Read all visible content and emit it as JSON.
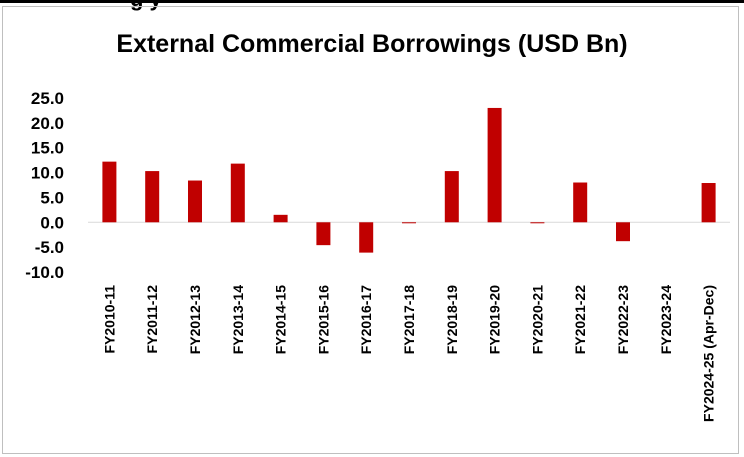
{
  "header_fragment": "g                           y",
  "chart_data": {
    "type": "bar",
    "title": "External Commercial Borrowings (USD Bn)",
    "xlabel": "",
    "ylabel": "",
    "categories": [
      "FY2010-11",
      "FY2011-12",
      "FY2012-13",
      "FY2013-14",
      "FY2014-15",
      "FY2015-16",
      "FY2016-17",
      "FY2017-18",
      "FY2018-19",
      "FY2019-20",
      "FY2020-21",
      "FY2021-22",
      "FY2022-23",
      "FY2023-24",
      "FY2024-25 (Apr-Dec)"
    ],
    "values": [
      12.2,
      10.3,
      8.4,
      11.8,
      1.5,
      -4.6,
      -6.1,
      -0.2,
      10.3,
      23.0,
      -0.2,
      8.0,
      -3.8,
      0.0,
      7.9
    ],
    "yticks": [
      "25.0",
      "20.0",
      "15.0",
      "10.0",
      "5.0",
      "0.0",
      "-5.0",
      "-10.0"
    ],
    "ylim": [
      -10,
      25
    ],
    "bar_color": "#c00000",
    "grid": false,
    "legend": "none"
  }
}
